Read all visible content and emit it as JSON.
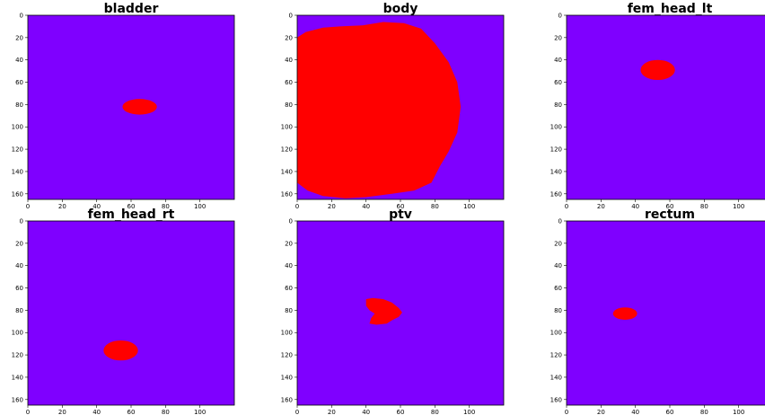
{
  "figure": {
    "background": "#ffffff",
    "mask_background_color": "#7f00ff",
    "mask_foreground_color": "#ff0000"
  },
  "chart_data": [
    {
      "type": "heatmap",
      "title": "bladder",
      "xlim": [
        0,
        120
      ],
      "ylim": [
        165,
        0
      ],
      "xticks": [
        0,
        20,
        40,
        60,
        80,
        100
      ],
      "yticks": [
        0,
        20,
        40,
        60,
        80,
        100,
        120,
        140,
        160
      ],
      "regions": [
        {
          "shape": "ellipse",
          "cx": 65,
          "cy": 82,
          "rx": 10,
          "ry": 7
        }
      ]
    },
    {
      "type": "heatmap",
      "title": "body",
      "xlim": [
        0,
        120
      ],
      "ylim": [
        165,
        0
      ],
      "xticks": [
        0,
        20,
        40,
        60,
        80,
        100
      ],
      "yticks": [
        0,
        20,
        40,
        60,
        80,
        100,
        120,
        140,
        160
      ],
      "regions": [
        {
          "shape": "polygon",
          "points": [
            [
              0,
              20
            ],
            [
              5,
              15
            ],
            [
              15,
              11
            ],
            [
              25,
              10
            ],
            [
              38,
              9
            ],
            [
              50,
              6
            ],
            [
              62,
              7
            ],
            [
              72,
              12
            ],
            [
              80,
              25
            ],
            [
              88,
              42
            ],
            [
              93,
              60
            ],
            [
              95,
              82
            ],
            [
              93,
              105
            ],
            [
              88,
              122
            ],
            [
              83,
              135
            ],
            [
              78,
              150
            ],
            [
              68,
              157
            ],
            [
              55,
              160
            ],
            [
              40,
              163
            ],
            [
              28,
              164
            ],
            [
              15,
              162
            ],
            [
              6,
              157
            ],
            [
              0,
              150
            ]
          ]
        }
      ]
    },
    {
      "type": "heatmap",
      "title": "fem_head_lt",
      "xlim": [
        0,
        120
      ],
      "ylim": [
        165,
        0
      ],
      "xticks": [
        0,
        20,
        40,
        60,
        80,
        100
      ],
      "yticks": [
        0,
        20,
        40,
        60,
        80,
        100,
        120,
        140,
        160
      ],
      "regions": [
        {
          "shape": "ellipse",
          "cx": 53,
          "cy": 49,
          "rx": 10,
          "ry": 9
        }
      ]
    },
    {
      "type": "heatmap",
      "title": "fem_head_rt",
      "xlim": [
        0,
        120
      ],
      "ylim": [
        165,
        0
      ],
      "xticks": [
        0,
        20,
        40,
        60,
        80,
        100
      ],
      "yticks": [
        0,
        20,
        40,
        60,
        80,
        100,
        120,
        140,
        160
      ],
      "regions": [
        {
          "shape": "ellipse",
          "cx": 54,
          "cy": 116,
          "rx": 10,
          "ry": 9
        }
      ]
    },
    {
      "type": "heatmap",
      "title": "ptv",
      "xlim": [
        0,
        120
      ],
      "ylim": [
        165,
        0
      ],
      "xticks": [
        0,
        20,
        40,
        60,
        80,
        100
      ],
      "yticks": [
        0,
        20,
        40,
        60,
        80,
        100,
        120,
        140,
        160
      ],
      "regions": [
        {
          "shape": "polygon",
          "points": [
            [
              40,
              70
            ],
            [
              44,
              69
            ],
            [
              50,
              70
            ],
            [
              55,
              73
            ],
            [
              59,
              78
            ],
            [
              61,
              82
            ],
            [
              59,
              86
            ],
            [
              55,
              89
            ],
            [
              52,
              92
            ],
            [
              46,
              93
            ],
            [
              42,
              92
            ],
            [
              43,
              87
            ],
            [
              45,
              83
            ],
            [
              42,
              80
            ],
            [
              40,
              76
            ]
          ]
        }
      ]
    },
    {
      "type": "heatmap",
      "title": "rectum",
      "xlim": [
        0,
        120
      ],
      "ylim": [
        165,
        0
      ],
      "xticks": [
        0,
        20,
        40,
        60,
        80,
        100
      ],
      "yticks": [
        0,
        20,
        40,
        60,
        80,
        100,
        120,
        140,
        160
      ],
      "regions": [
        {
          "shape": "ellipse",
          "cx": 34,
          "cy": 83,
          "rx": 7,
          "ry": 5.5
        }
      ]
    }
  ]
}
